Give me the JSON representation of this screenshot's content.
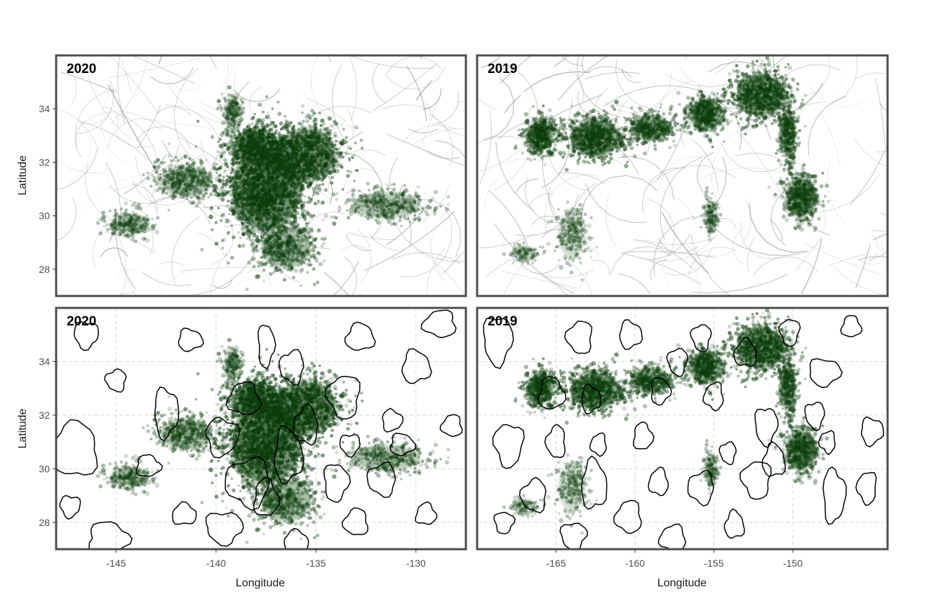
{
  "chart_data": [
    {
      "type": "heatmap",
      "panel": "top-left",
      "label": "2020",
      "overlay": "lagrangian-structures",
      "xlim": [
        -148,
        -127.5
      ],
      "ylim": [
        27,
        36
      ],
      "xticks": [
        -145,
        -140,
        -135,
        -130
      ],
      "yticks": [
        28,
        30,
        32,
        34
      ],
      "xlabel": "",
      "ylabel": "Latitude",
      "density_clusters": [
        {
          "lon": -137.5,
          "lat": 31.0,
          "spread_lon": 1.8,
          "spread_lat": 1.6,
          "intensity": 1.0
        },
        {
          "lon": -135.5,
          "lat": 32.3,
          "spread_lon": 1.6,
          "spread_lat": 1.0,
          "intensity": 0.9
        },
        {
          "lon": -138.0,
          "lat": 32.6,
          "spread_lon": 1.2,
          "spread_lat": 0.7,
          "intensity": 0.85
        },
        {
          "lon": -141.5,
          "lat": 31.3,
          "spread_lon": 1.3,
          "spread_lat": 0.6,
          "intensity": 0.6
        },
        {
          "lon": -144.3,
          "lat": 29.7,
          "spread_lon": 1.0,
          "spread_lat": 0.4,
          "intensity": 0.5
        },
        {
          "lon": -131.5,
          "lat": 30.4,
          "spread_lon": 1.8,
          "spread_lat": 0.5,
          "intensity": 0.5
        },
        {
          "lon": -136.5,
          "lat": 28.8,
          "spread_lon": 1.3,
          "spread_lat": 0.8,
          "intensity": 0.6
        },
        {
          "lon": -139.2,
          "lat": 33.9,
          "spread_lon": 0.4,
          "spread_lat": 0.6,
          "intensity": 0.45
        }
      ]
    },
    {
      "type": "heatmap",
      "panel": "top-right",
      "label": "2019",
      "overlay": "lagrangian-structures",
      "xlim": [
        -170,
        -144
      ],
      "ylim": [
        27,
        36
      ],
      "xticks": [
        -165,
        -160,
        -155,
        -150
      ],
      "yticks": [
        28,
        30,
        32,
        34
      ],
      "xlabel": "",
      "ylabel": "",
      "density_clusters": [
        {
          "lon": -166.0,
          "lat": 33.0,
          "spread_lon": 0.9,
          "spread_lat": 0.6,
          "intensity": 0.85
        },
        {
          "lon": -162.5,
          "lat": 32.9,
          "spread_lon": 1.6,
          "spread_lat": 0.7,
          "intensity": 0.85
        },
        {
          "lon": -159.0,
          "lat": 33.3,
          "spread_lon": 1.3,
          "spread_lat": 0.5,
          "intensity": 0.7
        },
        {
          "lon": -155.5,
          "lat": 33.8,
          "spread_lon": 1.2,
          "spread_lat": 0.6,
          "intensity": 0.75
        },
        {
          "lon": -152.0,
          "lat": 34.5,
          "spread_lon": 1.6,
          "spread_lat": 0.8,
          "intensity": 0.85
        },
        {
          "lon": -150.3,
          "lat": 33.0,
          "spread_lon": 0.5,
          "spread_lat": 0.9,
          "intensity": 0.7
        },
        {
          "lon": -149.5,
          "lat": 30.7,
          "spread_lon": 1.0,
          "spread_lat": 0.8,
          "intensity": 0.75
        },
        {
          "lon": -164.0,
          "lat": 29.3,
          "spread_lon": 0.9,
          "spread_lat": 0.9,
          "intensity": 0.35
        },
        {
          "lon": -155.2,
          "lat": 30.0,
          "spread_lon": 0.4,
          "spread_lat": 0.6,
          "intensity": 0.4
        },
        {
          "lon": -167.0,
          "lat": 28.6,
          "spread_lon": 0.8,
          "spread_lat": 0.3,
          "intensity": 0.3
        }
      ]
    },
    {
      "type": "heatmap",
      "panel": "bottom-left",
      "label": "2020",
      "overlay": "eddy-contours",
      "xlim": [
        -148,
        -127.5
      ],
      "ylim": [
        27,
        36
      ],
      "xticks": [
        -145,
        -140,
        -135,
        -130
      ],
      "yticks": [
        28,
        30,
        32,
        34
      ],
      "xlabel": "Longitude",
      "ylabel": "Latitude",
      "grid": true,
      "density_clusters": "same as top-left",
      "eddies": [
        {
          "lon": -146.5,
          "lat": 35.0,
          "rlon": 0.6,
          "rlat": 0.5
        },
        {
          "lon": -141.3,
          "lat": 34.8,
          "rlon": 0.6,
          "rlat": 0.4
        },
        {
          "lon": -137.5,
          "lat": 34.6,
          "rlon": 0.4,
          "rlat": 0.8
        },
        {
          "lon": -132.8,
          "lat": 34.9,
          "rlon": 0.7,
          "rlat": 0.5
        },
        {
          "lon": -128.8,
          "lat": 35.4,
          "rlon": 0.8,
          "rlat": 0.5
        },
        {
          "lon": -136.2,
          "lat": 33.8,
          "rlon": 0.6,
          "rlat": 0.6
        },
        {
          "lon": -130.0,
          "lat": 33.8,
          "rlon": 0.7,
          "rlat": 0.6
        },
        {
          "lon": -145.0,
          "lat": 33.3,
          "rlon": 0.5,
          "rlat": 0.4
        },
        {
          "lon": -142.5,
          "lat": 32.1,
          "rlon": 0.6,
          "rlat": 0.9
        },
        {
          "lon": -138.6,
          "lat": 32.6,
          "rlon": 0.8,
          "rlat": 0.6
        },
        {
          "lon": -133.6,
          "lat": 32.7,
          "rlon": 0.8,
          "rlat": 0.8
        },
        {
          "lon": -135.5,
          "lat": 31.6,
          "rlon": 0.6,
          "rlat": 0.7
        },
        {
          "lon": -131.2,
          "lat": 31.8,
          "rlon": 0.5,
          "rlat": 0.4
        },
        {
          "lon": -139.7,
          "lat": 31.2,
          "rlon": 0.8,
          "rlat": 0.7
        },
        {
          "lon": -136.4,
          "lat": 30.5,
          "rlon": 0.7,
          "rlat": 1.0
        },
        {
          "lon": -133.3,
          "lat": 30.9,
          "rlon": 0.5,
          "rlat": 0.4
        },
        {
          "lon": -130.7,
          "lat": 30.9,
          "rlon": 0.6,
          "rlat": 0.4
        },
        {
          "lon": -128.2,
          "lat": 31.6,
          "rlon": 0.5,
          "rlat": 0.4
        },
        {
          "lon": -147.1,
          "lat": 30.7,
          "rlon": 1.2,
          "rlat": 1.0
        },
        {
          "lon": -143.4,
          "lat": 30.1,
          "rlon": 0.6,
          "rlat": 0.4
        },
        {
          "lon": -138.4,
          "lat": 29.5,
          "rlon": 1.1,
          "rlat": 0.9
        },
        {
          "lon": -137.5,
          "lat": 28.9,
          "rlon": 0.6,
          "rlat": 0.7
        },
        {
          "lon": -134.0,
          "lat": 29.5,
          "rlon": 0.6,
          "rlat": 0.7
        },
        {
          "lon": -131.7,
          "lat": 29.6,
          "rlon": 0.7,
          "rlat": 0.6
        },
        {
          "lon": -147.3,
          "lat": 28.6,
          "rlon": 0.5,
          "rlat": 0.4
        },
        {
          "lon": -141.6,
          "lat": 28.3,
          "rlon": 0.6,
          "rlat": 0.4
        },
        {
          "lon": -133.0,
          "lat": 28.0,
          "rlon": 0.6,
          "rlat": 0.5
        },
        {
          "lon": -129.5,
          "lat": 28.3,
          "rlon": 0.5,
          "rlat": 0.4
        },
        {
          "lon": -145.4,
          "lat": 27.4,
          "rlon": 1.0,
          "rlat": 0.6
        },
        {
          "lon": -139.6,
          "lat": 27.8,
          "rlon": 0.9,
          "rlat": 0.6
        },
        {
          "lon": -136.0,
          "lat": 27.3,
          "rlon": 0.6,
          "rlat": 0.4
        }
      ]
    },
    {
      "type": "heatmap",
      "panel": "bottom-right",
      "label": "2019",
      "overlay": "eddy-contours",
      "xlim": [
        -170,
        -144
      ],
      "ylim": [
        27,
        36
      ],
      "xticks": [
        -165,
        -160,
        -155,
        -150
      ],
      "yticks": [
        28,
        30,
        32,
        34
      ],
      "xlabel": "Longitude",
      "ylabel": "",
      "grid": true,
      "density_clusters": "same as top-right",
      "eddies": [
        {
          "lon": -168.7,
          "lat": 34.8,
          "rlon": 0.9,
          "rlat": 0.9
        },
        {
          "lon": -163.5,
          "lat": 34.9,
          "rlon": 0.8,
          "rlat": 0.6
        },
        {
          "lon": -160.3,
          "lat": 35.0,
          "rlon": 0.7,
          "rlat": 0.5
        },
        {
          "lon": -155.8,
          "lat": 34.9,
          "rlon": 0.6,
          "rlat": 0.5
        },
        {
          "lon": -150.2,
          "lat": 35.1,
          "rlon": 0.6,
          "rlat": 0.5
        },
        {
          "lon": -146.3,
          "lat": 35.3,
          "rlon": 0.6,
          "rlat": 0.4
        },
        {
          "lon": -157.3,
          "lat": 34.0,
          "rlon": 0.6,
          "rlat": 0.5
        },
        {
          "lon": -153.0,
          "lat": 34.3,
          "rlon": 0.7,
          "rlat": 0.5
        },
        {
          "lon": -148.0,
          "lat": 33.6,
          "rlon": 1.0,
          "rlat": 0.5
        },
        {
          "lon": -165.3,
          "lat": 32.8,
          "rlon": 0.8,
          "rlat": 0.6
        },
        {
          "lon": -162.8,
          "lat": 32.6,
          "rlon": 0.6,
          "rlat": 0.5
        },
        {
          "lon": -158.4,
          "lat": 32.9,
          "rlon": 0.6,
          "rlat": 0.5
        },
        {
          "lon": -155.0,
          "lat": 32.7,
          "rlon": 0.6,
          "rlat": 0.5
        },
        {
          "lon": -151.7,
          "lat": 31.6,
          "rlon": 0.7,
          "rlat": 0.7
        },
        {
          "lon": -148.6,
          "lat": 32.0,
          "rlon": 0.6,
          "rlat": 0.5
        },
        {
          "lon": -145.0,
          "lat": 31.4,
          "rlon": 0.7,
          "rlat": 0.5
        },
        {
          "lon": -168.0,
          "lat": 30.9,
          "rlon": 0.9,
          "rlat": 0.8
        },
        {
          "lon": -165.0,
          "lat": 31.0,
          "rlon": 0.6,
          "rlat": 0.6
        },
        {
          "lon": -162.3,
          "lat": 30.9,
          "rlon": 0.5,
          "rlat": 0.4
        },
        {
          "lon": -159.5,
          "lat": 31.2,
          "rlon": 0.6,
          "rlat": 0.5
        },
        {
          "lon": -154.1,
          "lat": 30.6,
          "rlon": 0.5,
          "rlat": 0.4
        },
        {
          "lon": -151.2,
          "lat": 30.3,
          "rlon": 0.7,
          "rlat": 0.6
        },
        {
          "lon": -147.8,
          "lat": 31.0,
          "rlon": 0.5,
          "rlat": 0.4
        },
        {
          "lon": -166.4,
          "lat": 29.0,
          "rlon": 0.8,
          "rlat": 0.6
        },
        {
          "lon": -162.6,
          "lat": 29.4,
          "rlon": 0.8,
          "rlat": 0.9
        },
        {
          "lon": -158.5,
          "lat": 29.5,
          "rlon": 0.6,
          "rlat": 0.5
        },
        {
          "lon": -155.8,
          "lat": 29.3,
          "rlon": 0.8,
          "rlat": 0.6
        },
        {
          "lon": -152.3,
          "lat": 29.6,
          "rlon": 0.9,
          "rlat": 0.7
        },
        {
          "lon": -147.4,
          "lat": 29.0,
          "rlon": 0.7,
          "rlat": 1.0
        },
        {
          "lon": -145.3,
          "lat": 29.3,
          "rlon": 0.6,
          "rlat": 0.6
        },
        {
          "lon": -160.4,
          "lat": 28.2,
          "rlon": 0.8,
          "rlat": 0.6
        },
        {
          "lon": -153.7,
          "lat": 27.9,
          "rlon": 0.6,
          "rlat": 0.5
        },
        {
          "lon": -168.3,
          "lat": 28.0,
          "rlon": 0.6,
          "rlat": 0.4
        },
        {
          "lon": -163.9,
          "lat": 27.5,
          "rlon": 0.8,
          "rlat": 0.5
        },
        {
          "lon": -157.6,
          "lat": 27.4,
          "rlon": 0.8,
          "rlat": 0.5
        }
      ]
    }
  ],
  "colors": {
    "density": "#0b3d0b",
    "frame": "#4d4d4d",
    "eddy": "#000000",
    "flow": "#9a9a9a",
    "grid": "#d6d6d6"
  }
}
